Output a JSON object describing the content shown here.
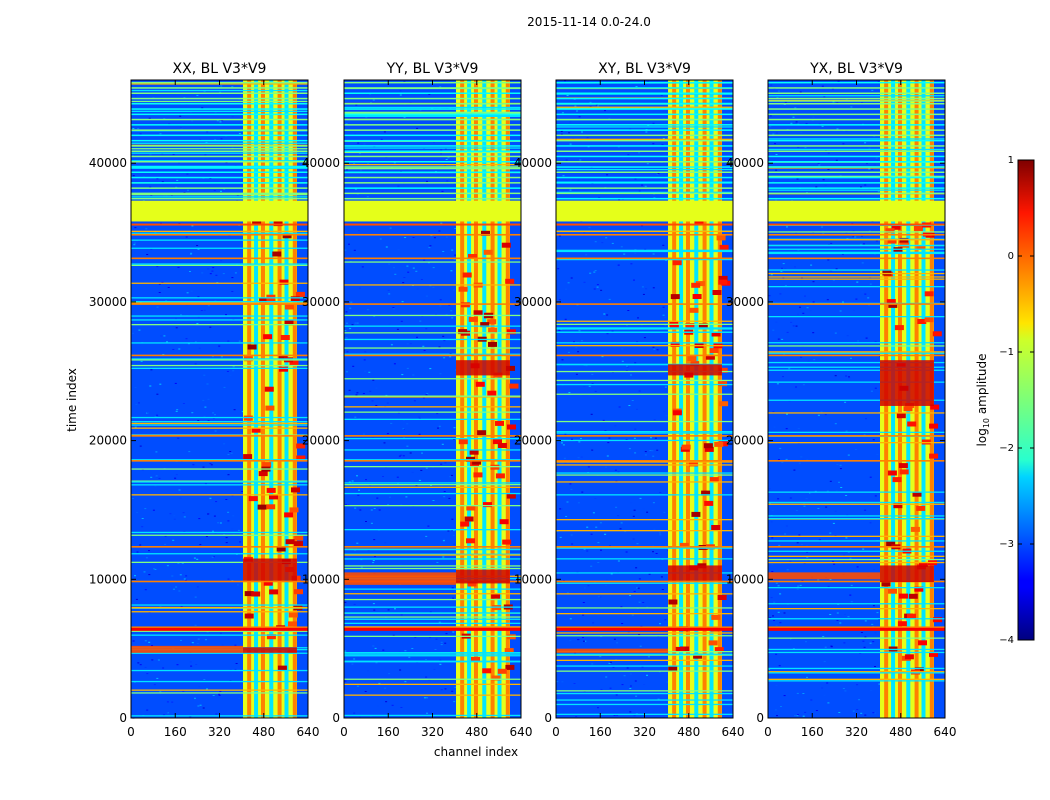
{
  "figure": {
    "suptitle": "2015-11-14 0.0-24.0"
  },
  "chart_data": {
    "type": "heatmap",
    "xlabel": "channel index",
    "ylabel": "time index",
    "xlim": [
      0,
      640
    ],
    "ylim": [
      0,
      46000
    ],
    "x_ticks": [
      0,
      160,
      320,
      480,
      640
    ],
    "x_tick_labels": [
      "0",
      "160",
      "320",
      "480",
      "640"
    ],
    "y_ticks": [
      0,
      10000,
      20000,
      30000,
      40000
    ],
    "y_tick_labels": [
      "0",
      "10000",
      "20000",
      "30000",
      "40000"
    ],
    "panels": [
      {
        "title": "XX, BL V3*V9",
        "strong_rows": [
          [
            9900,
            11500
          ],
          [
            4700,
            5100
          ]
        ],
        "left_band": [
          4700,
          5200
        ]
      },
      {
        "title": "YY, BL V3*V9",
        "strong_rows": [
          [
            9700,
            10700
          ],
          [
            24700,
            25800
          ]
        ],
        "left_band": [
          9600,
          10500
        ]
      },
      {
        "title": "XY, BL V3*V9",
        "strong_rows": [
          [
            9900,
            11000
          ],
          [
            24700,
            25500
          ]
        ],
        "left_band": [
          4700,
          5000
        ]
      },
      {
        "title": "YX, BL V3*V9",
        "strong_rows": [
          [
            9800,
            11000
          ],
          [
            22500,
            25800
          ]
        ],
        "left_band": [
          10000,
          10500
        ]
      }
    ],
    "rfi_channel_band": [
      405,
      600
    ],
    "saturated_time_band": [
      35800,
      37300
    ],
    "colorbar": {
      "label": "log10 amplitude",
      "label_base": "log",
      "label_sub": "10",
      "label_rest": " amplitude",
      "range": [
        -4,
        1
      ],
      "ticks": [
        1,
        0,
        -1,
        -2,
        -3,
        -4
      ],
      "tick_labels": [
        "1",
        "0",
        "−1",
        "−2",
        "−3",
        "−4"
      ],
      "colormap": "jet"
    }
  }
}
